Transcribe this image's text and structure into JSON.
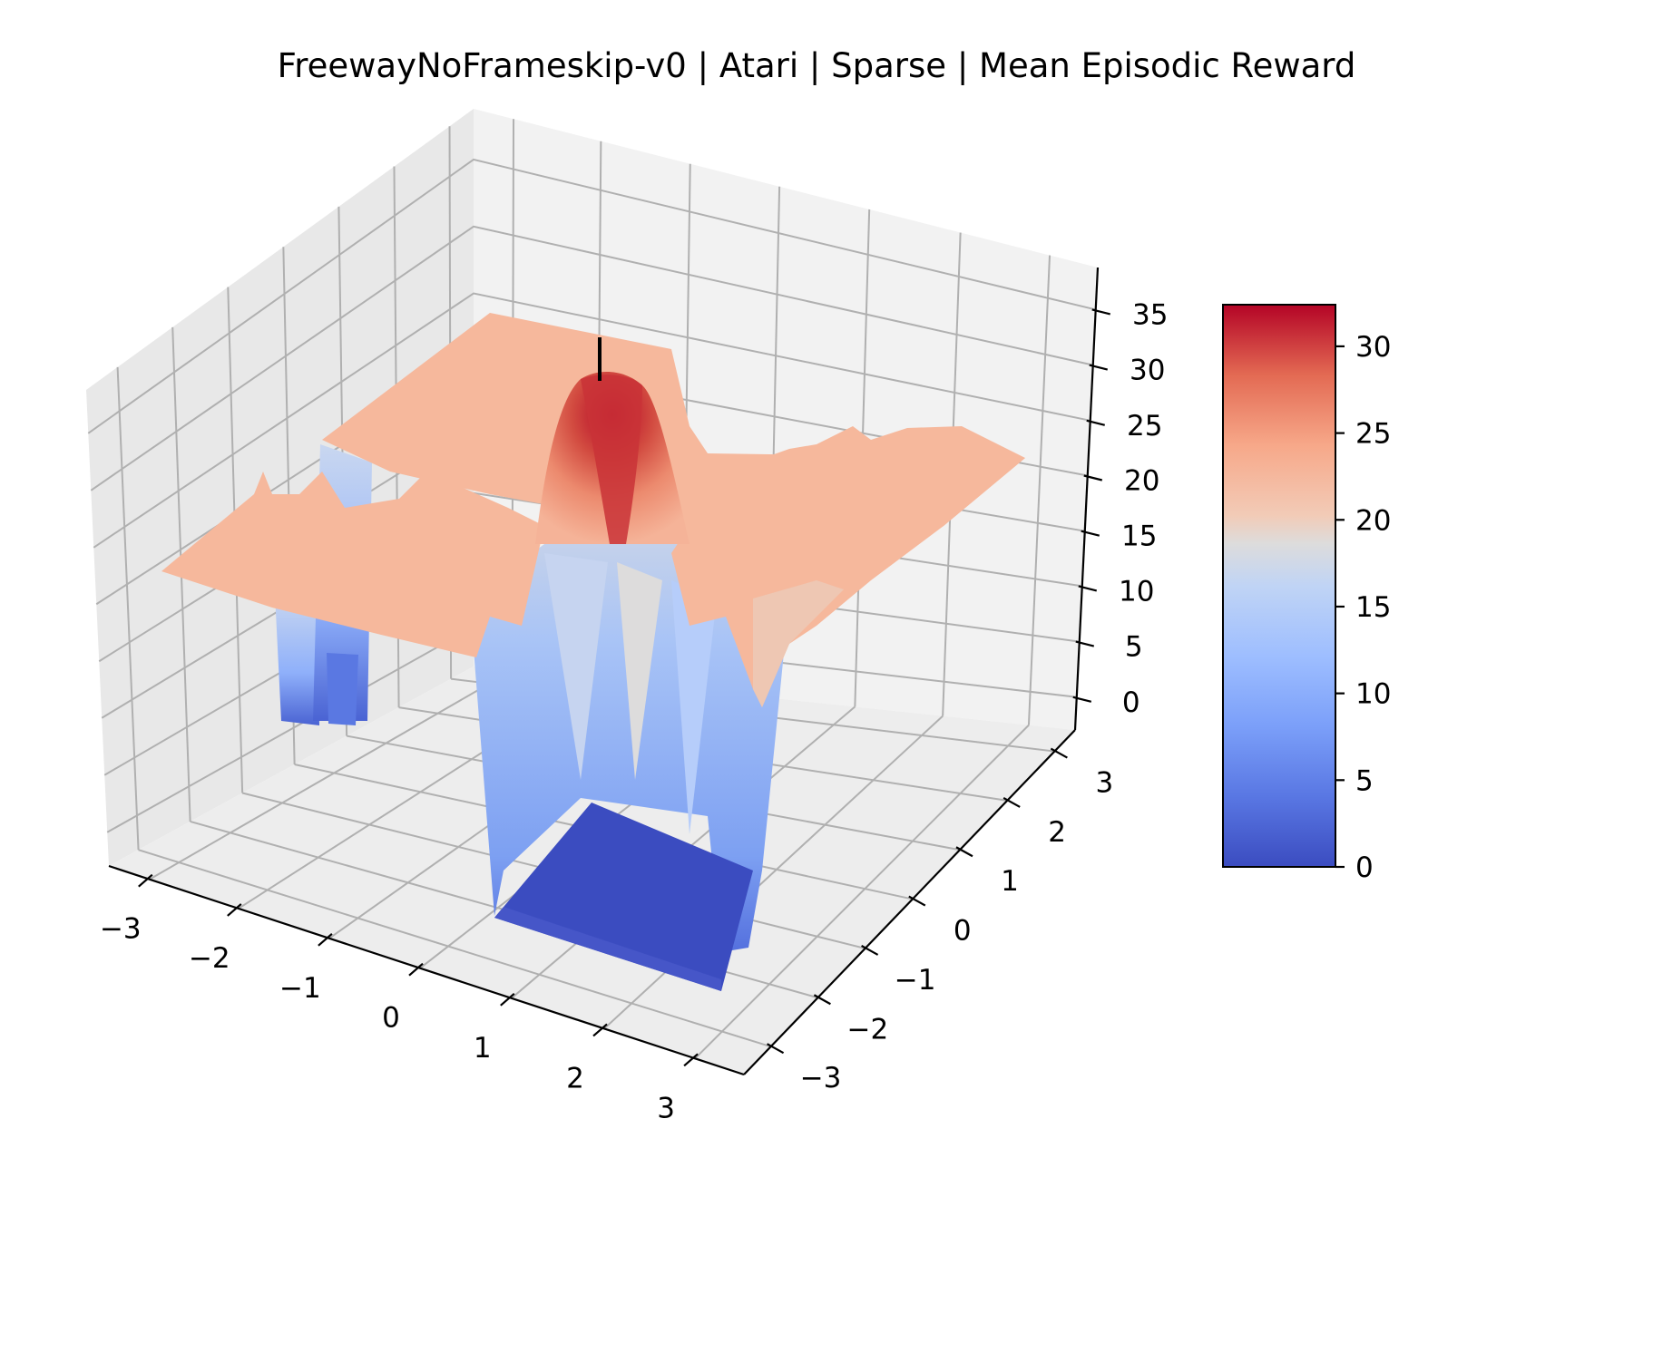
{
  "chart_data": {
    "type": "surface",
    "title": "FreewayNoFrameskip-v0 | Atari | Sparse | Mean Episodic Reward",
    "xlabel": "",
    "ylabel": "",
    "zlabel": "",
    "x_ticks": [
      "−3",
      "−2",
      "−1",
      "0",
      "1",
      "2",
      "3"
    ],
    "y_ticks": [
      "−3",
      "−2",
      "−1",
      "0",
      "1",
      "2",
      "3"
    ],
    "z_ticks": [
      "0",
      "5",
      "10",
      "15",
      "20",
      "25",
      "30",
      "35"
    ],
    "xlim": [
      -3.5,
      3.5
    ],
    "ylim": [
      -3.5,
      3.5
    ],
    "zlim": [
      -2,
      37
    ],
    "grid": true,
    "colormap": "coolwarm",
    "colorbar": {
      "ticks": [
        "0",
        "5",
        "10",
        "15",
        "20",
        "25",
        "30"
      ],
      "range": [
        0,
        32.4
      ],
      "placement": "right"
    },
    "series": [
      {
        "kind": "surface-summary",
        "plateau_value": 22,
        "peak": {
          "x": 0,
          "y": 0,
          "z": 32.4
        },
        "floor_value": 0,
        "floor_region": {
          "x": [
            0.6,
            2.9
          ],
          "y": [
            -1.4,
            0.5
          ]
        },
        "drop_regions": [
          {
            "x": [
              0.6,
              2.8
            ],
            "y": [
              -2.9,
              1.4
            ],
            "min": 0
          },
          {
            "x": [
              -3.2,
              -1.2
            ],
            "y": [
              2.9,
              3.4
            ],
            "min": 0
          }
        ]
      },
      {
        "kind": "marker-line",
        "x": 0,
        "y": 0,
        "z": [
          32.4,
          36.5
        ],
        "color": "#000000"
      }
    ],
    "colors": {
      "low": "#3b4cc0",
      "mid": "#dddddd",
      "high": "#b40426",
      "pane_back": "#f2f2f2",
      "pane_side": "#e6e6e6",
      "pane_floor": "#ebebeb",
      "grid": "#b0b0b0"
    }
  }
}
